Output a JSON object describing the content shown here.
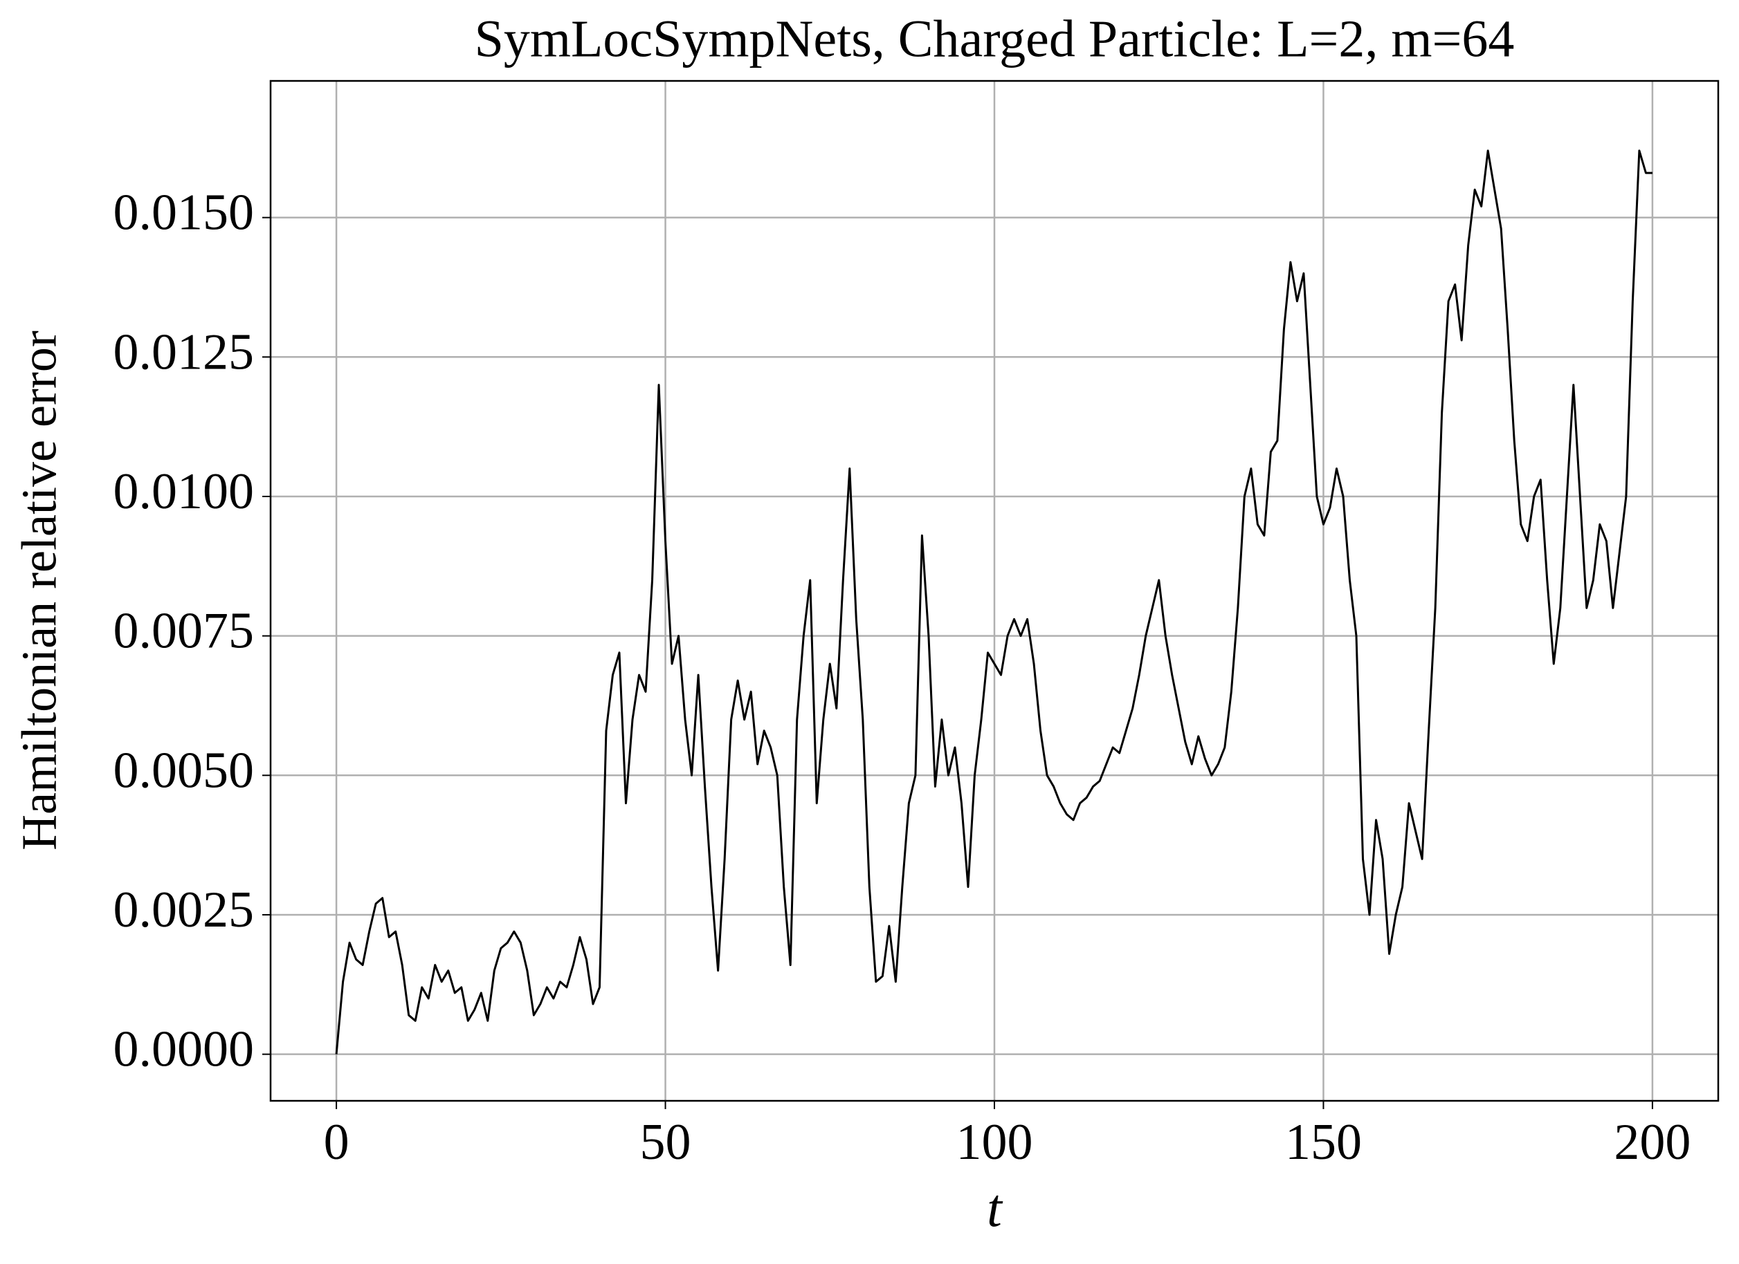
{
  "chart_data": {
    "type": "line",
    "title": "SymLocSympNets, Charged Particle: L=2, m=64",
    "x_label": "t",
    "y_label": "Hamiltonian relative error",
    "xlim": [
      -10,
      210
    ],
    "ylim": [
      -0.000835,
      0.01745
    ],
    "xticks": [
      0,
      50,
      100,
      150,
      200
    ],
    "yticks": [
      {
        "value": 0,
        "label": "0.0000"
      },
      {
        "value": 0.0025,
        "label": "0.0025"
      },
      {
        "value": 0.005,
        "label": "0.0050"
      },
      {
        "value": 0.0075,
        "label": "0.0075"
      },
      {
        "value": 0.01,
        "label": "0.0100"
      },
      {
        "value": 0.0125,
        "label": "0.0125"
      },
      {
        "value": 0.015,
        "label": "0.0150"
      }
    ],
    "grid": true,
    "x": [
      0,
      1,
      2,
      3,
      4,
      5,
      6,
      7,
      8,
      9,
      10,
      11,
      12,
      13,
      14,
      15,
      16,
      17,
      18,
      19,
      20,
      21,
      22,
      23,
      24,
      25,
      26,
      27,
      28,
      29,
      30,
      31,
      32,
      33,
      34,
      35,
      36,
      37,
      38,
      39,
      40,
      41,
      42,
      43,
      44,
      45,
      46,
      47,
      48,
      49,
      50,
      51,
      52,
      53,
      54,
      55,
      56,
      57,
      58,
      59,
      60,
      61,
      62,
      63,
      64,
      65,
      66,
      67,
      68,
      69,
      70,
      71,
      72,
      73,
      74,
      75,
      76,
      77,
      78,
      79,
      80,
      81,
      82,
      83,
      84,
      85,
      86,
      87,
      88,
      89,
      90,
      91,
      92,
      93,
      94,
      95,
      96,
      97,
      98,
      99,
      100,
      101,
      102,
      103,
      104,
      105,
      106,
      107,
      108,
      109,
      110,
      111,
      112,
      113,
      114,
      115,
      116,
      117,
      118,
      119,
      120,
      121,
      122,
      123,
      124,
      125,
      126,
      127,
      128,
      129,
      130,
      131,
      132,
      133,
      134,
      135,
      136,
      137,
      138,
      139,
      140,
      141,
      142,
      143,
      144,
      145,
      146,
      147,
      148,
      149,
      150,
      151,
      152,
      153,
      154,
      155,
      156,
      157,
      158,
      159,
      160,
      161,
      162,
      163,
      164,
      165,
      166,
      167,
      168,
      169,
      170,
      171,
      172,
      173,
      174,
      175,
      176,
      177,
      178,
      179,
      180,
      181,
      182,
      183,
      184,
      185,
      186,
      187,
      188,
      189,
      190,
      191,
      192,
      193,
      194,
      195,
      196,
      197,
      198,
      199,
      200
    ],
    "series": [
      {
        "color": "#000000",
        "values": [
          0,
          0.0013,
          0.002,
          0.0017,
          0.0016,
          0.0022,
          0.0027,
          0.0028,
          0.0021,
          0.0022,
          0.0016,
          0.0007,
          0.0006,
          0.0012,
          0.001,
          0.0016,
          0.0013,
          0.0015,
          0.0011,
          0.0012,
          0.0006,
          0.0008,
          0.0011,
          0.0006,
          0.0015,
          0.0019,
          0.002,
          0.0022,
          0.002,
          0.0015,
          0.0007,
          0.0009,
          0.0012,
          0.001,
          0.0013,
          0.0012,
          0.0016,
          0.0021,
          0.0017,
          0.0009,
          0.0012,
          0.0058,
          0.0068,
          0.0072,
          0.0045,
          0.006,
          0.0068,
          0.0065,
          0.0085,
          0.012,
          0.0092,
          0.007,
          0.0075,
          0.006,
          0.005,
          0.0068,
          0.0048,
          0.003,
          0.0015,
          0.0035,
          0.006,
          0.0067,
          0.006,
          0.0065,
          0.0052,
          0.0058,
          0.0055,
          0.005,
          0.003,
          0.0016,
          0.006,
          0.0075,
          0.0085,
          0.0045,
          0.006,
          0.007,
          0.0062,
          0.0085,
          0.0105,
          0.0078,
          0.006,
          0.003,
          0.0013,
          0.0014,
          0.0023,
          0.0013,
          0.003,
          0.0045,
          0.005,
          0.0093,
          0.0075,
          0.0048,
          0.006,
          0.005,
          0.0055,
          0.0045,
          0.003,
          0.005,
          0.006,
          0.0072,
          0.007,
          0.0068,
          0.0075,
          0.0078,
          0.0075,
          0.0078,
          0.007,
          0.0058,
          0.005,
          0.0048,
          0.0045,
          0.0043,
          0.0042,
          0.0045,
          0.0046,
          0.0048,
          0.0049,
          0.0052,
          0.0055,
          0.0054,
          0.0058,
          0.0062,
          0.0068,
          0.0075,
          0.008,
          0.0085,
          0.0075,
          0.0068,
          0.0062,
          0.0056,
          0.0052,
          0.0057,
          0.0053,
          0.005,
          0.0052,
          0.0055,
          0.0065,
          0.008,
          0.01,
          0.0105,
          0.0095,
          0.0093,
          0.0108,
          0.011,
          0.013,
          0.0142,
          0.0135,
          0.014,
          0.012,
          0.01,
          0.0095,
          0.0098,
          0.0105,
          0.01,
          0.0085,
          0.0075,
          0.0035,
          0.0025,
          0.0042,
          0.0035,
          0.0018,
          0.0025,
          0.003,
          0.0045,
          0.004,
          0.0035,
          0.0058,
          0.008,
          0.0115,
          0.0135,
          0.0138,
          0.0128,
          0.0145,
          0.0155,
          0.0152,
          0.0162,
          0.0155,
          0.0148,
          0.013,
          0.011,
          0.0095,
          0.0092,
          0.01,
          0.0103,
          0.0085,
          0.007,
          0.008,
          0.01,
          0.012,
          0.01,
          0.008,
          0.0085,
          0.0095,
          0.0092,
          0.008,
          0.009,
          0.01,
          0.0135,
          0.0162,
          0.0158,
          0.0158
        ]
      }
    ]
  }
}
